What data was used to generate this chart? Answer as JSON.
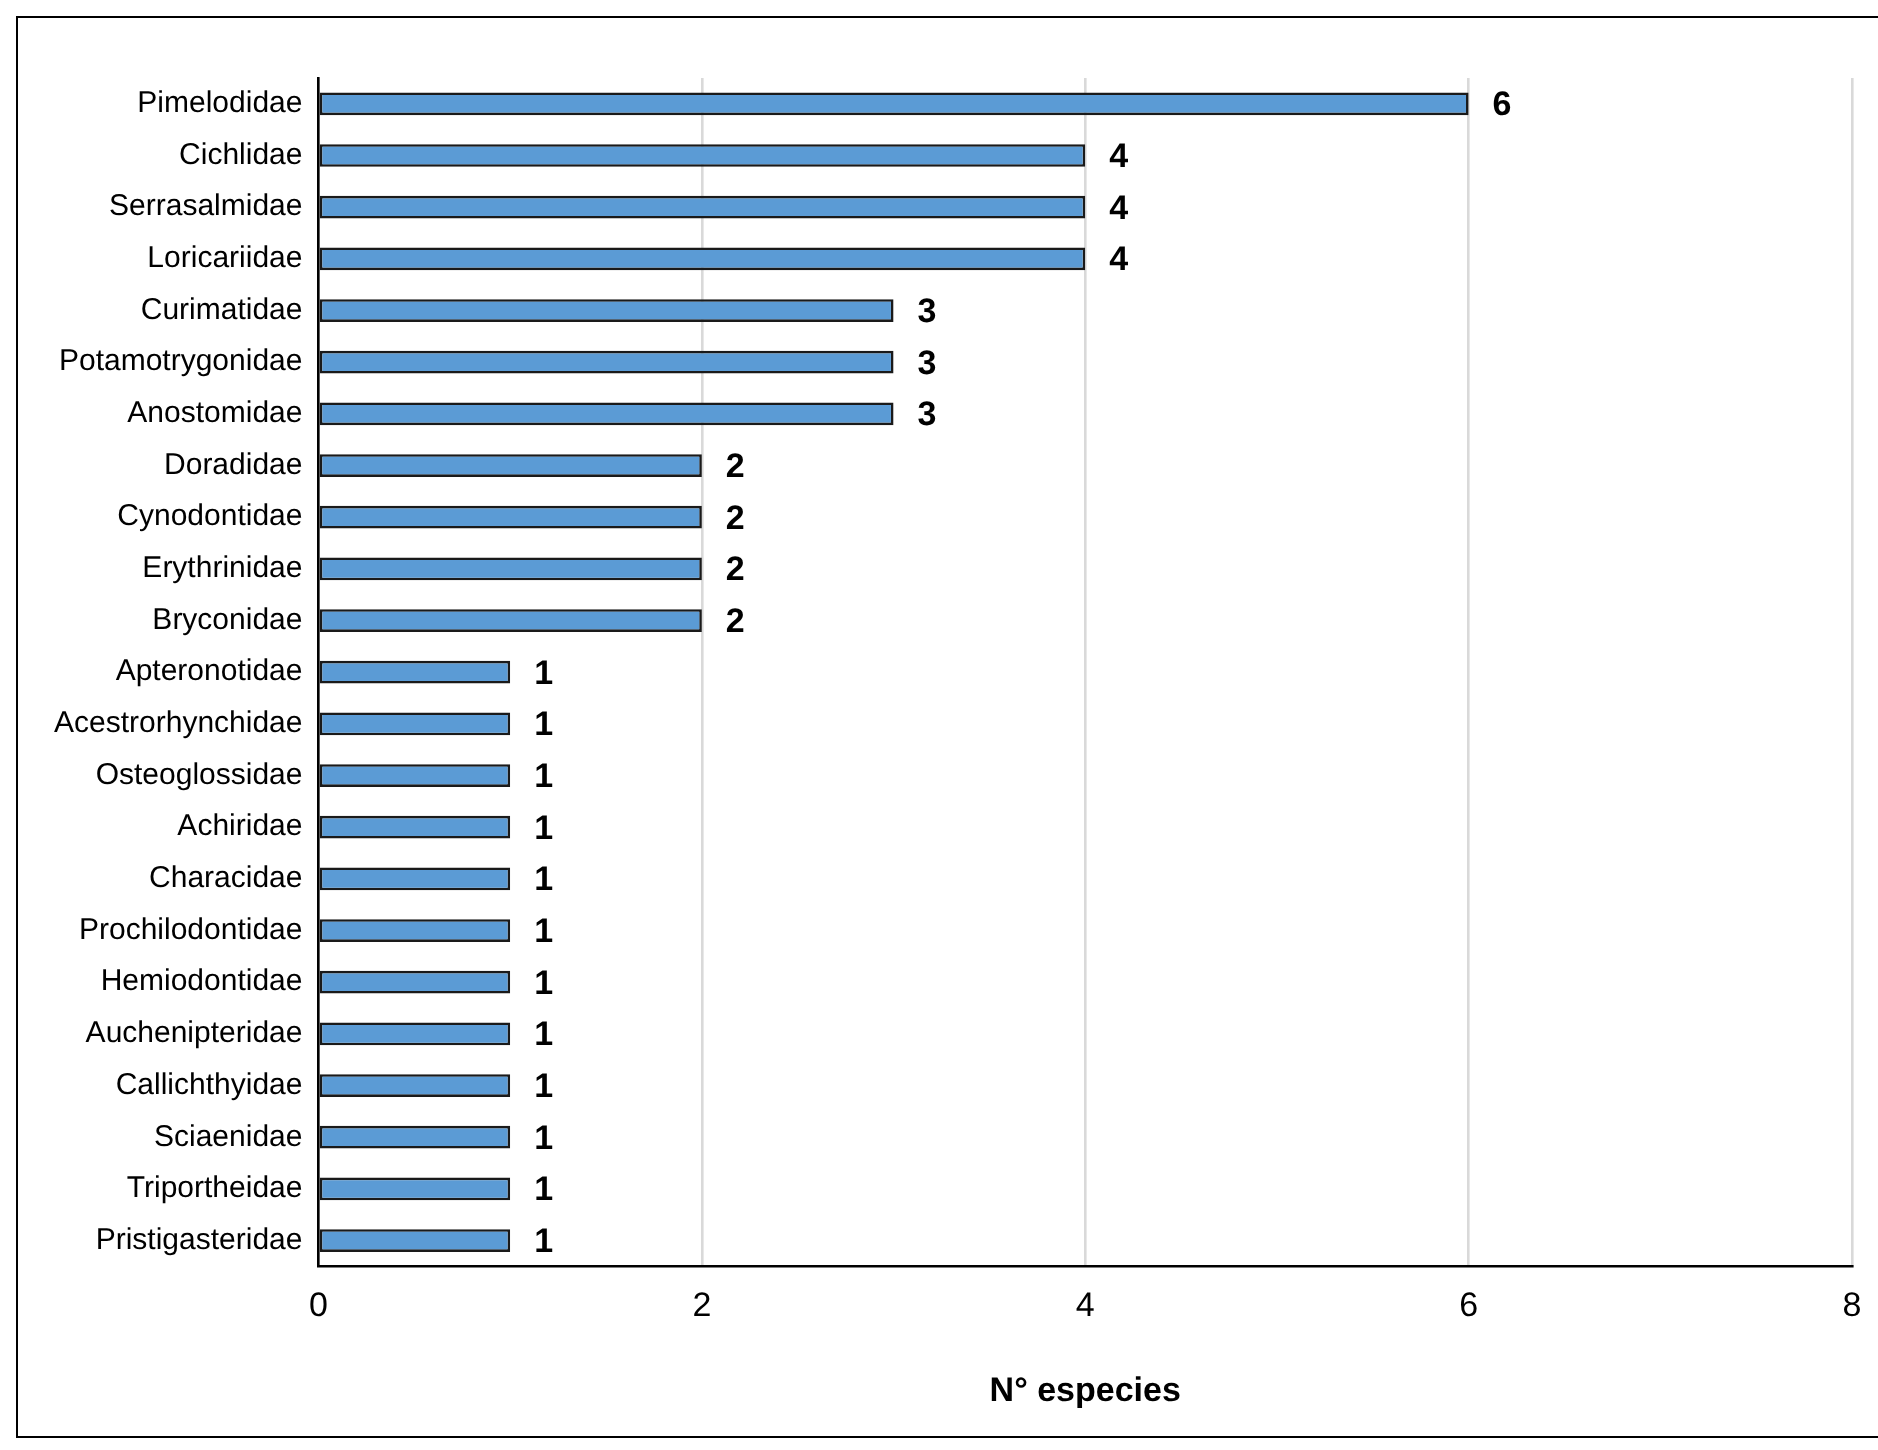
{
  "chart_data": {
    "type": "bar",
    "orientation": "horizontal",
    "xlabel": "N° especies",
    "categories": [
      "Pimelodidae",
      "Cichlidae",
      "Serrasalmidae",
      "Loricariidae",
      "Curimatidae",
      "Potamotrygonidae",
      "Anostomidae",
      "Doradidae",
      "Cynodontidae",
      "Erythrinidae",
      "Bryconidae",
      "Apteronotidae",
      "Acestrorhynchidae",
      "Osteoglossidae",
      "Achiridae",
      "Characidae",
      "Prochilodontidae",
      "Hemiodontidae",
      "Auchenipteridae",
      "Callichthyidae",
      "Sciaenidae",
      "Triportheidae",
      "Pristigasteridae"
    ],
    "values": [
      6,
      4,
      4,
      4,
      3,
      3,
      3,
      2,
      2,
      2,
      2,
      1,
      1,
      1,
      1,
      1,
      1,
      1,
      1,
      1,
      1,
      1,
      1
    ],
    "color": "#5b9bd5",
    "xlim": [
      0,
      8
    ],
    "xticks": [
      0,
      2,
      4,
      6,
      8
    ],
    "grid": "x",
    "data_labels": true,
    "legend": false
  }
}
